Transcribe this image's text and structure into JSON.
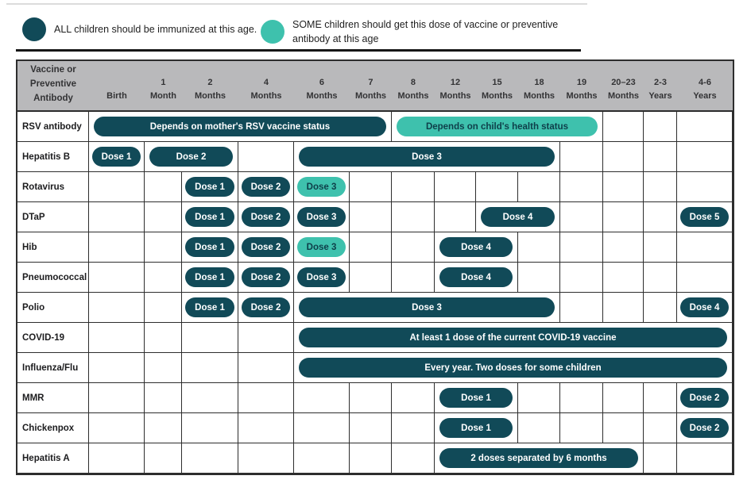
{
  "legend": {
    "all_label": "ALL children should be immunized at this age.",
    "some_label": "SOME children should get this dose of vaccine or preventive\nantibody at this age"
  },
  "colors": {
    "all_dose": "#114a58",
    "some_dose": "#3ec1ad",
    "some_dose_text": "#0e3e49",
    "header_bg": "#b9b9bb",
    "grid_border": "#2d2d2d"
  },
  "chart_data": {
    "type": "table",
    "corner_header": "Vaccine or\nPreventive\nAntibody",
    "columns": [
      {
        "label": "Birth"
      },
      {
        "label": "1\nMonth"
      },
      {
        "label": "2\nMonths"
      },
      {
        "label": "4\nMonths"
      },
      {
        "label": "6\nMonths"
      },
      {
        "label": "7\nMonths"
      },
      {
        "label": "8\nMonths"
      },
      {
        "label": "12\nMonths"
      },
      {
        "label": "15\nMonths"
      },
      {
        "label": "18\nMonths"
      },
      {
        "label": "19\nMonths"
      },
      {
        "label": "20–23\nMonths"
      },
      {
        "label": "2-3\nYears"
      },
      {
        "label": "4-6\nYears"
      }
    ],
    "rows": [
      {
        "vaccine": "RSV antibody",
        "pills": [
          {
            "col": 0,
            "span": 6,
            "label": "Depends on mother's RSV vaccine status",
            "type": "all"
          },
          {
            "col": 6,
            "span": 5,
            "label": "Depends on child's health status",
            "type": "some"
          }
        ]
      },
      {
        "vaccine": "Hepatitis B",
        "pills": [
          {
            "col": 0,
            "span": 1,
            "label": "Dose 1",
            "type": "all"
          },
          {
            "col": 1,
            "span": 2,
            "label": "Dose 2",
            "type": "all"
          },
          {
            "col": 4,
            "span": 6,
            "label": "Dose 3",
            "type": "all"
          }
        ]
      },
      {
        "vaccine": "Rotavirus",
        "pills": [
          {
            "col": 2,
            "span": 1,
            "label": "Dose 1",
            "type": "all"
          },
          {
            "col": 3,
            "span": 1,
            "label": "Dose 2",
            "type": "all"
          },
          {
            "col": 4,
            "span": 1,
            "label": "Dose 3",
            "type": "some"
          }
        ]
      },
      {
        "vaccine": "DTaP",
        "pills": [
          {
            "col": 2,
            "span": 1,
            "label": "Dose 1",
            "type": "all"
          },
          {
            "col": 3,
            "span": 1,
            "label": "Dose 2",
            "type": "all"
          },
          {
            "col": 4,
            "span": 1,
            "label": "Dose 3",
            "type": "all"
          },
          {
            "col": 8,
            "span": 2,
            "label": "Dose 4",
            "type": "all"
          },
          {
            "col": 13,
            "span": 1,
            "label": "Dose 5",
            "type": "all"
          }
        ]
      },
      {
        "vaccine": "Hib",
        "pills": [
          {
            "col": 2,
            "span": 1,
            "label": "Dose 1",
            "type": "all"
          },
          {
            "col": 3,
            "span": 1,
            "label": "Dose 2",
            "type": "all"
          },
          {
            "col": 4,
            "span": 1,
            "label": "Dose 3",
            "type": "some"
          },
          {
            "col": 7,
            "span": 2,
            "label": "Dose 4",
            "type": "all"
          }
        ]
      },
      {
        "vaccine": "Pneumococcal",
        "pills": [
          {
            "col": 2,
            "span": 1,
            "label": "Dose 1",
            "type": "all"
          },
          {
            "col": 3,
            "span": 1,
            "label": "Dose 2",
            "type": "all"
          },
          {
            "col": 4,
            "span": 1,
            "label": "Dose 3",
            "type": "all"
          },
          {
            "col": 7,
            "span": 2,
            "label": "Dose 4",
            "type": "all"
          }
        ]
      },
      {
        "vaccine": "Polio",
        "pills": [
          {
            "col": 2,
            "span": 1,
            "label": "Dose 1",
            "type": "all"
          },
          {
            "col": 3,
            "span": 1,
            "label": "Dose 2",
            "type": "all"
          },
          {
            "col": 4,
            "span": 6,
            "label": "Dose 3",
            "type": "all"
          },
          {
            "col": 13,
            "span": 1,
            "label": "Dose 4",
            "type": "all"
          }
        ]
      },
      {
        "vaccine": "COVID-19",
        "pills": [
          {
            "col": 4,
            "span": 10,
            "label": "At least 1 dose of the current COVID-19 vaccine",
            "type": "all"
          }
        ]
      },
      {
        "vaccine": "Influenza/Flu",
        "pills": [
          {
            "col": 4,
            "span": 10,
            "label": "Every year. Two doses for some children",
            "type": "all"
          }
        ]
      },
      {
        "vaccine": "MMR",
        "pills": [
          {
            "col": 7,
            "span": 2,
            "label": "Dose 1",
            "type": "all"
          },
          {
            "col": 13,
            "span": 1,
            "label": "Dose 2",
            "type": "all"
          }
        ]
      },
      {
        "vaccine": "Chickenpox",
        "pills": [
          {
            "col": 7,
            "span": 2,
            "label": "Dose 1",
            "type": "all"
          },
          {
            "col": 13,
            "span": 1,
            "label": "Dose 2",
            "type": "all"
          }
        ]
      },
      {
        "vaccine": "Hepatitis A",
        "pills": [
          {
            "col": 7,
            "span": 5,
            "label": "2 doses separated by 6 months",
            "type": "all"
          }
        ]
      }
    ]
  }
}
